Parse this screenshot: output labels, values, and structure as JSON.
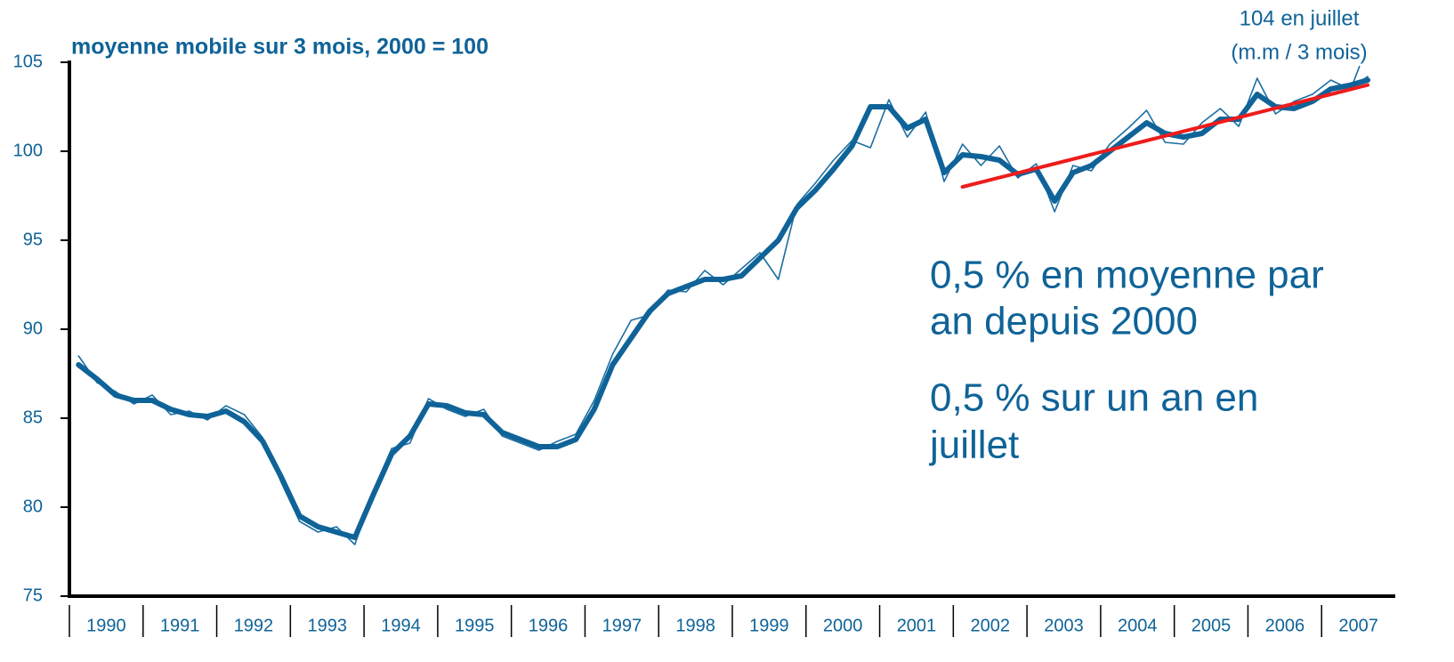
{
  "chart_data": {
    "type": "line",
    "title": "moyenne mobile sur 3 mois, 2000 = 100",
    "annotations": [
      [
        "104 en juillet",
        "(m.m / 3 mois)"
      ],
      [
        "0,5 % en moyenne par",
        "an depuis 2000"
      ],
      [
        "0,5 % sur un an en",
        "juillet"
      ]
    ],
    "categories": [
      null,
      "1990",
      null,
      null,
      null,
      "1991",
      null,
      null,
      null,
      "1992",
      null,
      null,
      null,
      "1993",
      null,
      null,
      null,
      "1994",
      null,
      null,
      null,
      "1995",
      null,
      null,
      null,
      "1996",
      null,
      null,
      null,
      "1997",
      null,
      null,
      null,
      "1998",
      null,
      null,
      null,
      "1999",
      null,
      null,
      null,
      "2000",
      null,
      null,
      null,
      "2001",
      null,
      null,
      null,
      "2002",
      null,
      null,
      null,
      "2003",
      null,
      null,
      null,
      "2004",
      null,
      null,
      null,
      "2005",
      null,
      null,
      null,
      "2006",
      null,
      null,
      null,
      "2007",
      null,
      null
    ],
    "series": [
      {
        "color": "#1a6ea3",
        "values": [
          88.5,
          87.0,
          86.5,
          85.8,
          86.3,
          85.2,
          85.4,
          84.9,
          85.7,
          85.2,
          83.9,
          81.4,
          79.2,
          78.6,
          78.9,
          77.9,
          80.9,
          83.3,
          83.6,
          86.1,
          85.5,
          85.1,
          85.5,
          84.0,
          83.6,
          83.2,
          83.7,
          84.1,
          86.0,
          88.6,
          90.5,
          90.8,
          92.2,
          92.1,
          93.3,
          92.5,
          93.4,
          94.3,
          92.8,
          97.0,
          98.2,
          99.5,
          100.6,
          100.2,
          102.9,
          100.8,
          102.2,
          98.3,
          100.4,
          99.2,
          100.3,
          98.5,
          99.3,
          96.6,
          99.2,
          98.9,
          100.4,
          101.3,
          102.3,
          100.5,
          100.4,
          101.6,
          102.4,
          101.4,
          104.1,
          102.1,
          102.8,
          103.2,
          104.0,
          103.5,
          104.2,
          null
        ]
      },
      {
        "color": "#0f6398",
        "values": [
          88.0,
          87.2,
          86.3,
          86.0,
          86.0,
          85.5,
          85.2,
          85.1,
          85.4,
          84.8,
          83.7,
          81.7,
          79.5,
          78.9,
          78.6,
          78.3,
          80.7,
          83.0,
          84.0,
          85.8,
          85.7,
          85.3,
          85.2,
          84.2,
          83.8,
          83.4,
          83.4,
          83.8,
          85.5,
          88.0,
          89.5,
          91.0,
          92.0,
          92.4,
          92.8,
          92.8,
          93.0,
          94.0,
          95.0,
          96.8,
          97.8,
          99.0,
          100.3,
          102.5,
          102.5,
          101.3,
          101.8,
          98.8,
          99.8,
          99.7,
          99.5,
          98.7,
          99.0,
          97.2,
          98.8,
          99.2,
          100.0,
          100.8,
          101.6,
          101.0,
          100.8,
          101.0,
          101.8,
          101.8,
          103.2,
          102.5,
          102.4,
          102.8,
          103.5,
          103.7,
          104.0,
          null
        ]
      },
      {
        "color": "#ee1c1c",
        "values": [
          null,
          null,
          null,
          null,
          null,
          null,
          null,
          null,
          null,
          null,
          null,
          null,
          null,
          null,
          null,
          null,
          null,
          null,
          null,
          null,
          null,
          null,
          null,
          null,
          null,
          null,
          null,
          null,
          null,
          null,
          null,
          null,
          null,
          null,
          null,
          null,
          null,
          null,
          null,
          null,
          null,
          null,
          null,
          null,
          null,
          null,
          null,
          null,
          98.0,
          98.26,
          98.52,
          98.78,
          99.04,
          99.3,
          99.56,
          99.82,
          100.08,
          100.34,
          100.6,
          100.86,
          101.12,
          101.38,
          101.64,
          101.9,
          102.16,
          102.42,
          102.68,
          102.94,
          103.2,
          103.46,
          103.72,
          null
        ]
      }
    ],
    "ylim": [
      75,
      105
    ],
    "yticks": [
      75,
      80,
      85,
      90,
      95,
      100,
      105
    ]
  }
}
